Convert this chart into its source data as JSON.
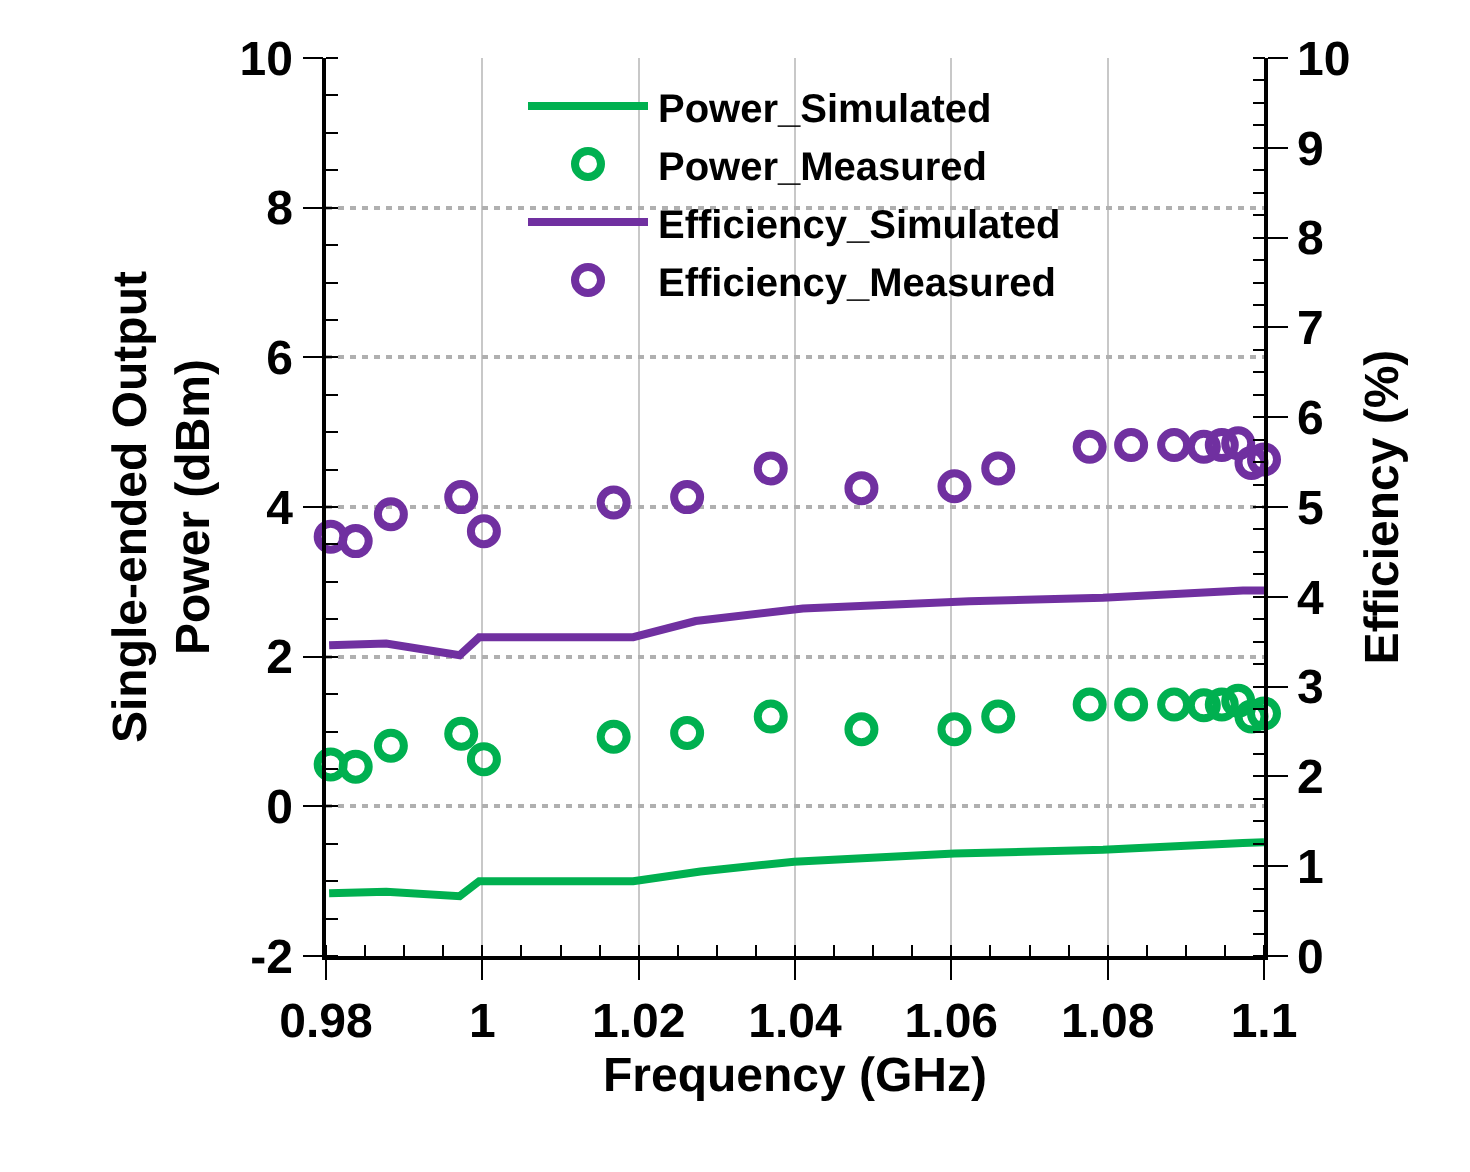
{
  "chart_data": {
    "type": "line",
    "xlabel": "Frequency (GHz)",
    "ylabel": "Single-ended Output\nPower (dBm)",
    "y2label": "Efficiency (%)",
    "xlim": [
      0.98,
      1.1
    ],
    "xticks": [
      0.98,
      1,
      1.02,
      1.04,
      1.06,
      1.08,
      1.1
    ],
    "ylim": [
      -2,
      10
    ],
    "yticks": [
      -2,
      0,
      2,
      4,
      6,
      8,
      10
    ],
    "y2lim": [
      0,
      10
    ],
    "y2ticks": [
      0,
      1,
      2,
      3,
      4,
      5,
      6,
      7,
      8,
      9,
      10
    ],
    "grid": true,
    "legend": "top",
    "series": [
      {
        "name": "Power_Simulated",
        "color": "#00b050",
        "marker": "none",
        "line_style": "solid",
        "x": [
          0.9804,
          0.9877,
          0.9971,
          0.9996,
          1.0193,
          1.0279,
          1.0399,
          1.0604,
          1.0794,
          1.0973,
          1.1
        ],
        "values": [
          -1.16,
          -1.14,
          -1.2,
          -1.0,
          -1.0,
          -0.87,
          -0.74,
          -0.63,
          -0.58,
          -0.49,
          -0.48
        ]
      },
      {
        "name": "Power_Measured",
        "type": "scatter",
        "color": "#00b050",
        "marker": "circle",
        "x": [
          0.9806,
          0.9838,
          0.9883,
          0.9973,
          1.0002,
          1.0168,
          1.0262,
          1.0369,
          1.0485,
          1.0604,
          1.066,
          1.0777,
          1.083,
          1.0885,
          1.0923,
          1.0946,
          1.0967,
          1.0984,
          1.1
        ],
        "values": [
          0.56,
          0.53,
          0.81,
          0.97,
          0.63,
          0.93,
          0.98,
          1.2,
          1.03,
          1.03,
          1.2,
          1.36,
          1.36,
          1.36,
          1.35,
          1.36,
          1.41,
          1.2,
          1.24
        ]
      },
      {
        "name": "Efficiency_Simulated",
        "axis": "y2",
        "color": "#7030a0",
        "marker": "none",
        "line_style": "solid",
        "x": [
          0.9804,
          0.9877,
          0.9971,
          0.9996,
          1.0193,
          1.0273,
          1.041,
          1.0623,
          1.0794,
          1.0973,
          1.1
        ],
        "values": [
          3.46,
          3.48,
          3.35,
          3.55,
          3.55,
          3.73,
          3.87,
          3.95,
          3.99,
          4.07,
          4.07
        ]
      },
      {
        "name": "Efficiency_Measured",
        "type": "scatter",
        "axis": "y2",
        "color": "#7030a0",
        "marker": "circle",
        "x": [
          0.9806,
          0.9838,
          0.9883,
          0.9973,
          1.0002,
          1.0168,
          1.0262,
          1.0369,
          1.0485,
          1.0604,
          1.066,
          1.0777,
          1.083,
          1.0885,
          1.0923,
          1.0946,
          1.0967,
          1.0984,
          1.1
        ],
        "values": [
          4.67,
          4.62,
          4.92,
          5.11,
          4.73,
          5.05,
          5.11,
          5.43,
          5.21,
          5.23,
          5.43,
          5.67,
          5.69,
          5.69,
          5.67,
          5.69,
          5.71,
          5.49,
          5.53
        ]
      }
    ]
  }
}
